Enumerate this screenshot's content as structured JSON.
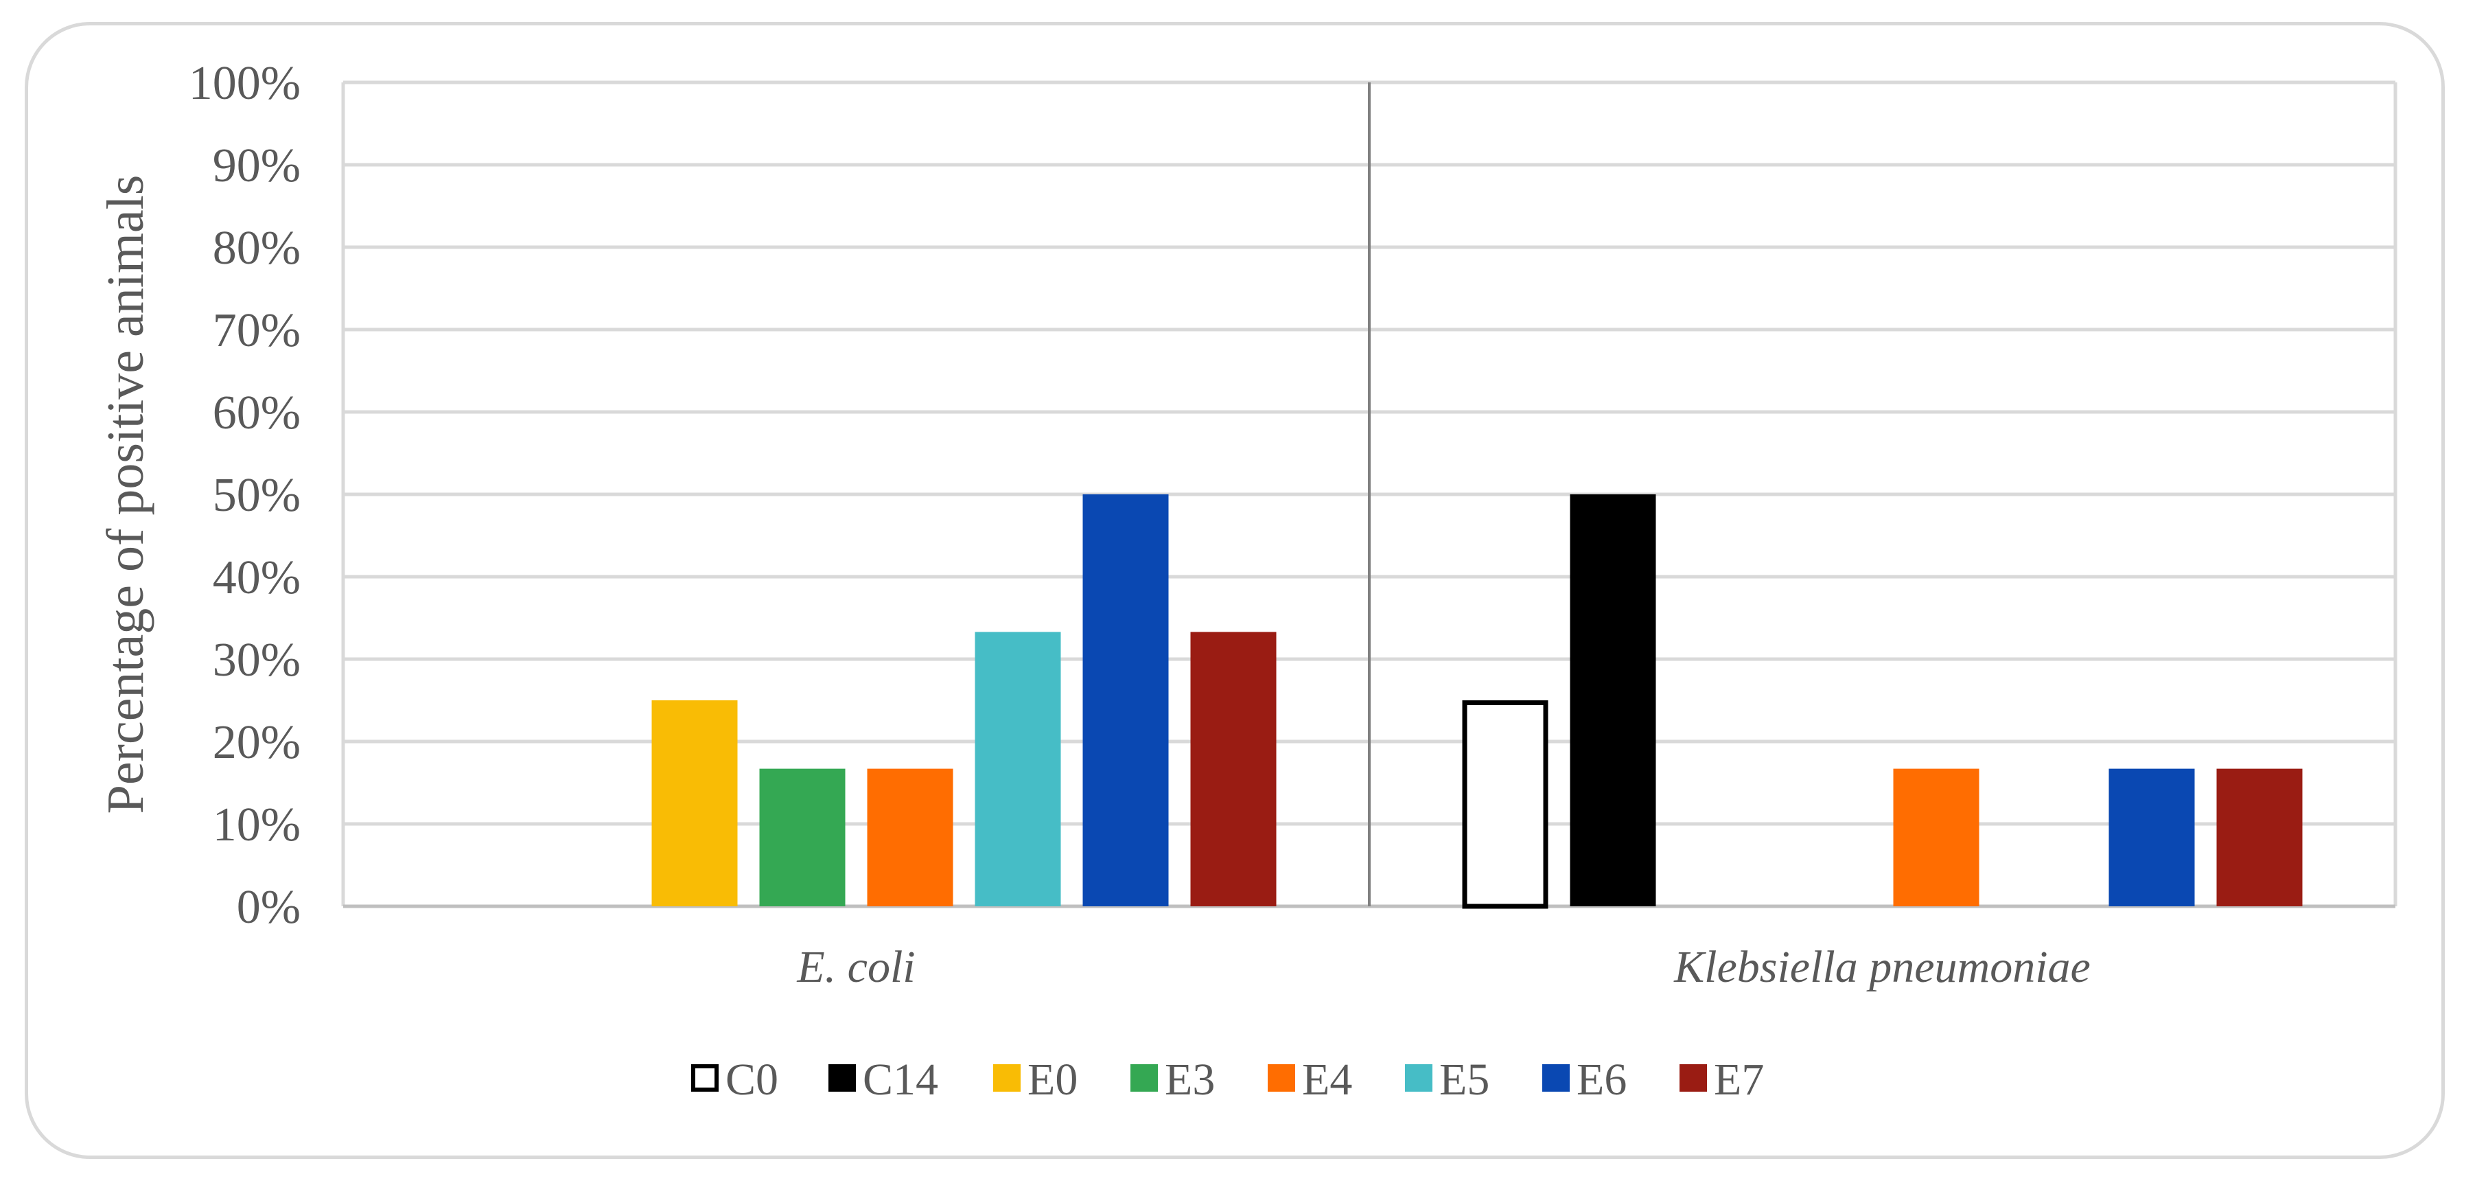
{
  "chart_data": {
    "type": "bar",
    "ylabel": "Percentage of positive animals",
    "ylim": [
      0,
      100
    ],
    "yticks": [
      "0%",
      "10%",
      "20%",
      "30%",
      "40%",
      "50%",
      "60%",
      "70%",
      "80%",
      "90%",
      "100%"
    ],
    "grid": true,
    "legend_position": "bottom",
    "categories": [
      "E. coli",
      "Klebsiella pneumoniae"
    ],
    "series": [
      {
        "name": "C0",
        "color": "#ffffff",
        "stroke": "#000000",
        "values": [
          0,
          25
        ]
      },
      {
        "name": "C14",
        "color": "#000000",
        "values": [
          0,
          50
        ]
      },
      {
        "name": "E0",
        "color": "#f9bc05",
        "values": [
          25,
          0
        ]
      },
      {
        "name": "E3",
        "color": "#34a853",
        "values": [
          16.7,
          0
        ]
      },
      {
        "name": "E4",
        "color": "#ff6d01",
        "values": [
          16.7,
          16.7
        ]
      },
      {
        "name": "E5",
        "color": "#46bdc6",
        "values": [
          33.3,
          0
        ]
      },
      {
        "name": "E6",
        "color": "#0a48b2",
        "values": [
          50,
          16.7
        ]
      },
      {
        "name": "E7",
        "color": "#9a1c13",
        "values": [
          33.3,
          16.7
        ]
      }
    ]
  }
}
